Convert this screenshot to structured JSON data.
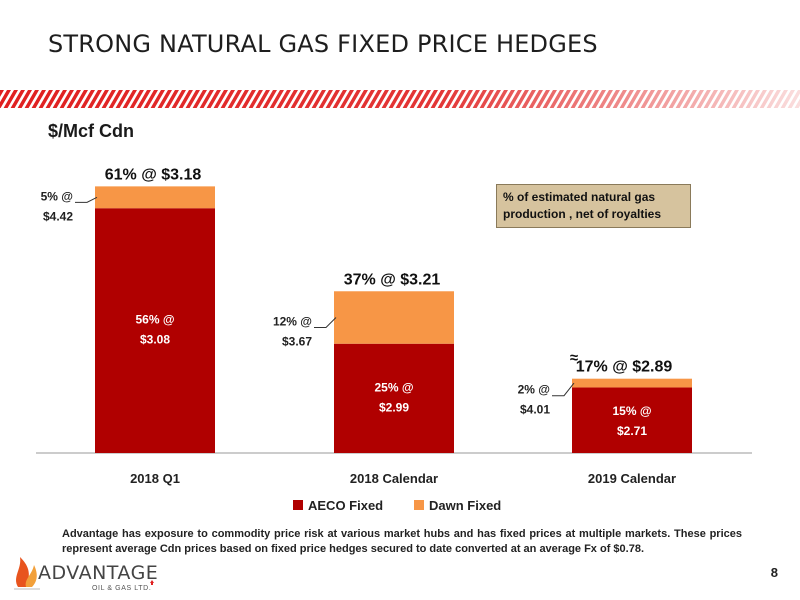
{
  "slide": {
    "title": "STRONG NATURAL GAS FIXED PRICE HEDGES",
    "unit_label": "$/Mcf Cdn",
    "note_box": "% of estimated natural gas production , net of royalties",
    "footnote": "Advantage has exposure to commodity price risk at various market hubs and has fixed prices at multiple markets.  These prices represent average Cdn prices based on fixed price hedges secured to date converted at an average Fx of $0.78.",
    "page_number": "8",
    "logo_text": "ADVANTAGE",
    "logo_subtext": "OIL & GAS LTD.",
    "colors": {
      "stripe": "#e02020",
      "logo_flame": "#e8541e"
    }
  },
  "chart_data": {
    "type": "bar",
    "stacked": true,
    "categories": [
      "2018 Q1",
      "2018 Calendar",
      "2019 Calendar"
    ],
    "series": [
      {
        "name": "AECO Fixed",
        "color": "#b00000",
        "values": [
          56,
          25,
          15
        ],
        "labels": [
          "56% @",
          "25% @",
          "15% @"
        ],
        "prices": [
          "$3.08",
          "$2.99",
          "$2.71"
        ]
      },
      {
        "name": "Dawn Fixed",
        "color": "#f79646",
        "values": [
          5,
          12,
          2
        ],
        "labels": [
          "5% @",
          "12% @",
          "2% @"
        ],
        "prices": [
          "$4.42",
          "$3.67",
          "$4.01"
        ]
      }
    ],
    "totals": [
      "61% @ $3.18",
      "37% @ $3.21",
      "17% @ $2.89"
    ],
    "approx_marker": "≈",
    "ylim": [
      0,
      62
    ],
    "legend_position": "bottom",
    "grid": false
  }
}
